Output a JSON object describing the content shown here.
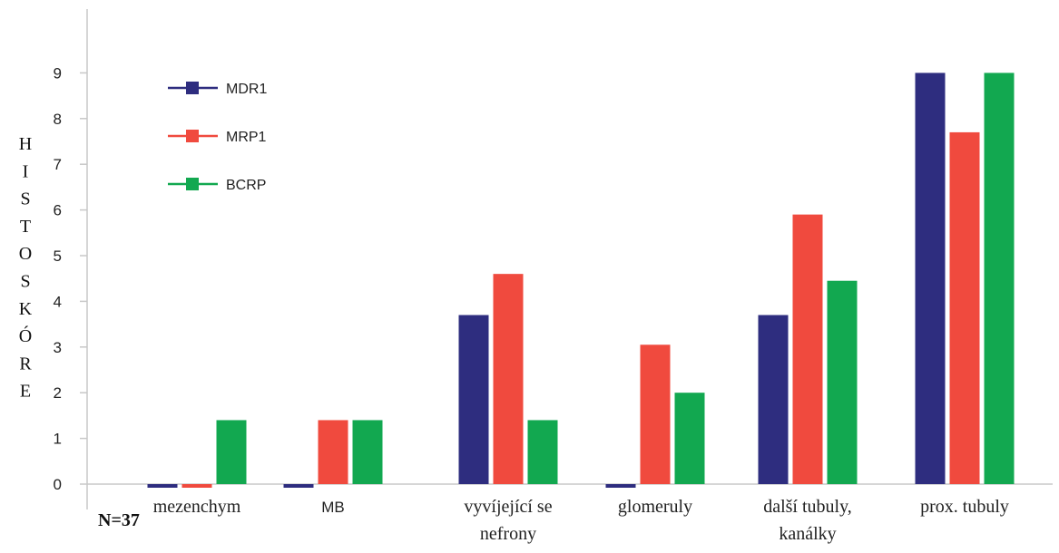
{
  "chart_data": {
    "type": "bar",
    "title": "",
    "xlabel": "",
    "ylabel": "HISTOSKÓRE",
    "ylabel_chars": [
      "H",
      "I",
      "S",
      "T",
      "O",
      "S",
      "K",
      "Ó",
      "R",
      "E"
    ],
    "ylim": [
      0,
      9
    ],
    "yticks": [
      "0",
      "1",
      "2",
      "3",
      "4",
      "5",
      "6",
      "7",
      "8",
      "9"
    ],
    "grid": false,
    "legend_position": "top-left",
    "categories": [
      [
        "mezenchym"
      ],
      [
        "MB"
      ],
      [
        "vyvíjející se",
        "nefrony"
      ],
      [
        "glomeruly"
      ],
      [
        "další tubuly,",
        "kanálky"
      ],
      [
        "prox. tubuly"
      ]
    ],
    "series": [
      {
        "name": "MDR1",
        "color": "#2e2d7f",
        "values": [
          -0.05,
          -0.05,
          3.7,
          -0.05,
          3.7,
          9.0
        ]
      },
      {
        "name": "MRP1",
        "color": "#f04a3e",
        "values": [
          -0.05,
          1.4,
          4.6,
          3.05,
          5.9,
          7.7
        ]
      },
      {
        "name": "BCRP",
        "color": "#12a850",
        "values": [
          1.4,
          1.4,
          1.4,
          2.0,
          4.45,
          9.0
        ]
      }
    ],
    "annotation": "N=37"
  }
}
